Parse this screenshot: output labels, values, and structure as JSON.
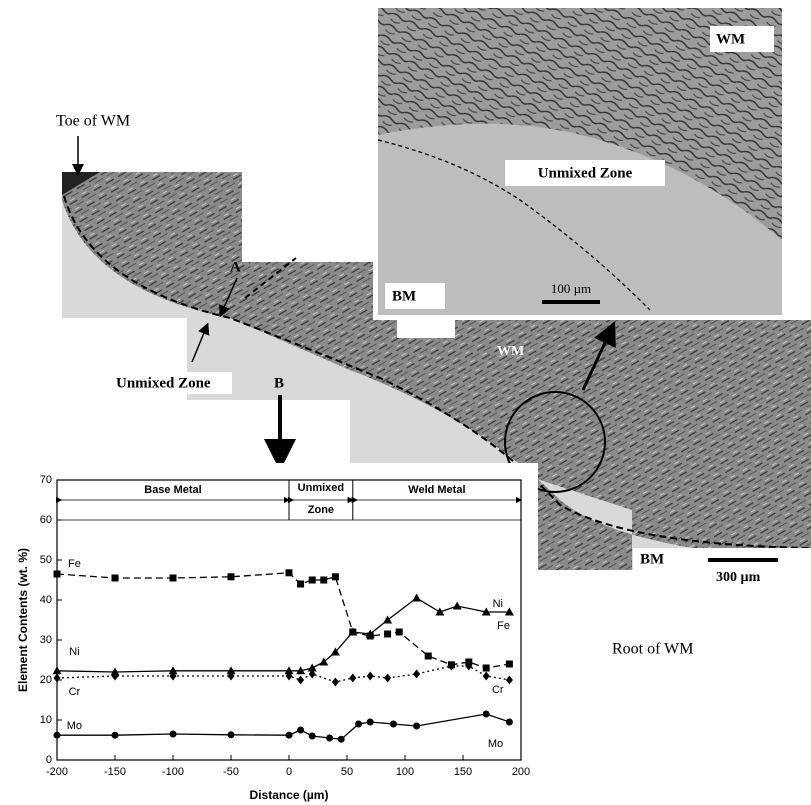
{
  "figure": {
    "toe_label": "Toe of WM",
    "root_label": "Root of WM",
    "unmixed_label": "Unmixed Zone",
    "point_a": "A",
    "point_b": "B",
    "wm_label": "WM",
    "bm_label": "BM",
    "scale_main": "300 µm",
    "inset": {
      "wm_label": "WM",
      "unmixed_label": "Unmixed Zone",
      "bm_label": "BM",
      "scale": "100 µm"
    }
  },
  "chart_data": {
    "type": "line",
    "x_label": "Distance (µm)",
    "y_label": "Element Contents (wt. %)",
    "xlim": [
      -200,
      200
    ],
    "xticks": [
      -200,
      -150,
      -100,
      -50,
      0,
      50,
      100,
      150,
      200
    ],
    "ylim": [
      0,
      70
    ],
    "yticks": [
      0,
      10,
      20,
      30,
      40,
      50,
      60,
      70
    ],
    "regions": [
      {
        "label": "Base Metal",
        "start": -200,
        "end": 0
      },
      {
        "label": [
          "Unmixed",
          "Zone"
        ],
        "start": 0,
        "end": 55
      },
      {
        "label": "Weld Metal",
        "start": 55,
        "end": 200
      }
    ],
    "series": [
      {
        "name": "Fe",
        "color": "#000000",
        "line_style": "dashed",
        "marker": "square",
        "x": [
          -200,
          -150,
          -100,
          -50,
          0,
          10,
          20,
          30,
          40,
          55,
          70,
          85,
          95,
          120,
          140,
          155,
          170,
          190
        ],
        "values": [
          46.5,
          45.5,
          45.5,
          45.8,
          46.8,
          44,
          45,
          45,
          45.8,
          32,
          31,
          31.5,
          32,
          26,
          23.8,
          24.5,
          23,
          24
        ]
      },
      {
        "name": "Ni",
        "color": "#000000",
        "line_style": "solid",
        "marker": "triangle",
        "x": [
          -200,
          -150,
          -100,
          -50,
          0,
          10,
          20,
          30,
          40,
          55,
          70,
          85,
          110,
          130,
          145,
          170,
          190
        ],
        "values": [
          22.3,
          22,
          22.3,
          22.3,
          22.3,
          22.3,
          23,
          24.5,
          27,
          32,
          31.5,
          35,
          40.5,
          37,
          38.5,
          37,
          37
        ]
      },
      {
        "name": "Cr",
        "color": "#000000",
        "line_style": "dotted",
        "marker": "diamond",
        "x": [
          -200,
          -150,
          -100,
          -50,
          0,
          10,
          20,
          40,
          55,
          70,
          85,
          110,
          140,
          155,
          170,
          190
        ],
        "values": [
          20.5,
          21,
          21,
          21,
          21,
          20,
          21.5,
          19.5,
          20.5,
          21,
          20.5,
          21.5,
          23.5,
          23.5,
          21,
          20
        ]
      },
      {
        "name": "Mo",
        "color": "#000000",
        "line_style": "solid",
        "marker": "circle",
        "x": [
          -200,
          -150,
          -100,
          -50,
          0,
          10,
          20,
          35,
          45,
          60,
          70,
          90,
          110,
          170,
          190
        ],
        "values": [
          6.2,
          6.2,
          6.5,
          6.3,
          6.2,
          7.5,
          6,
          5.5,
          5.2,
          9,
          9.5,
          9,
          8.5,
          11.5,
          9.5
        ]
      }
    ]
  }
}
